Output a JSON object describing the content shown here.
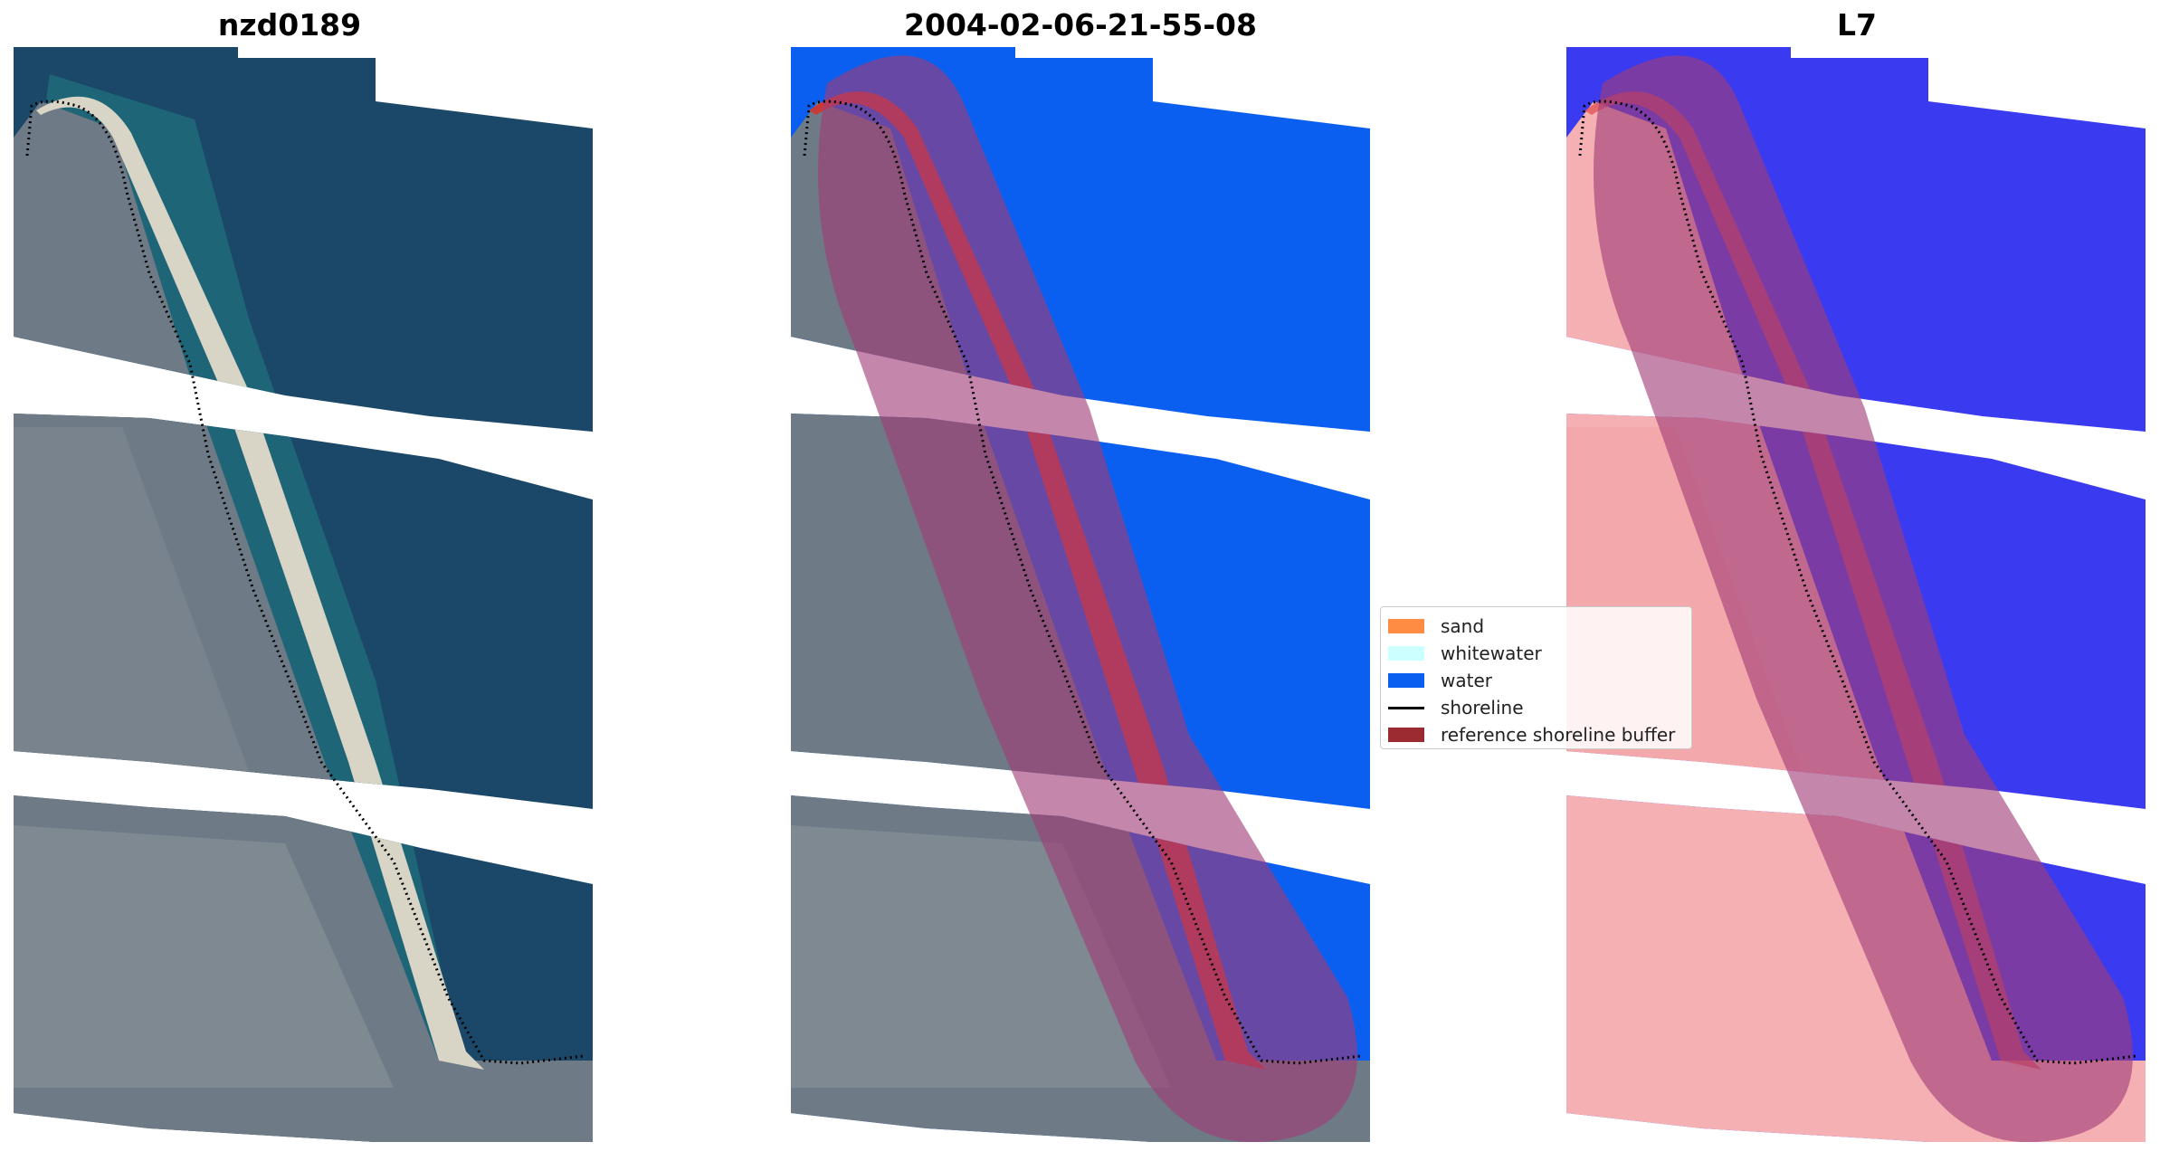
{
  "titles": {
    "left": "nzd0189",
    "middle": "2004-02-06-21-55-08",
    "right": "L7"
  },
  "legend": {
    "items": [
      {
        "label": "sand",
        "color": "#ff8c42"
      },
      {
        "label": "whitewater",
        "color": "#ccffff"
      },
      {
        "label": "water",
        "color": "#0a5ff0"
      },
      {
        "label": "shoreline",
        "color": "#000000"
      },
      {
        "label": "reference shoreline buffer",
        "color": "#9b2b30"
      }
    ]
  },
  "colors": {
    "ocean_rgb": "#1b4868",
    "shallow": "#1e6a7a",
    "land_rgb": "#6b7782",
    "beach": "#d7d3c4",
    "water_class": "#0a5ff0",
    "sand_class": "#c83a36",
    "buffer": "#a23b78",
    "ndwi_water": "#3a3af0",
    "ndwi_land": "#f3a3a8"
  }
}
